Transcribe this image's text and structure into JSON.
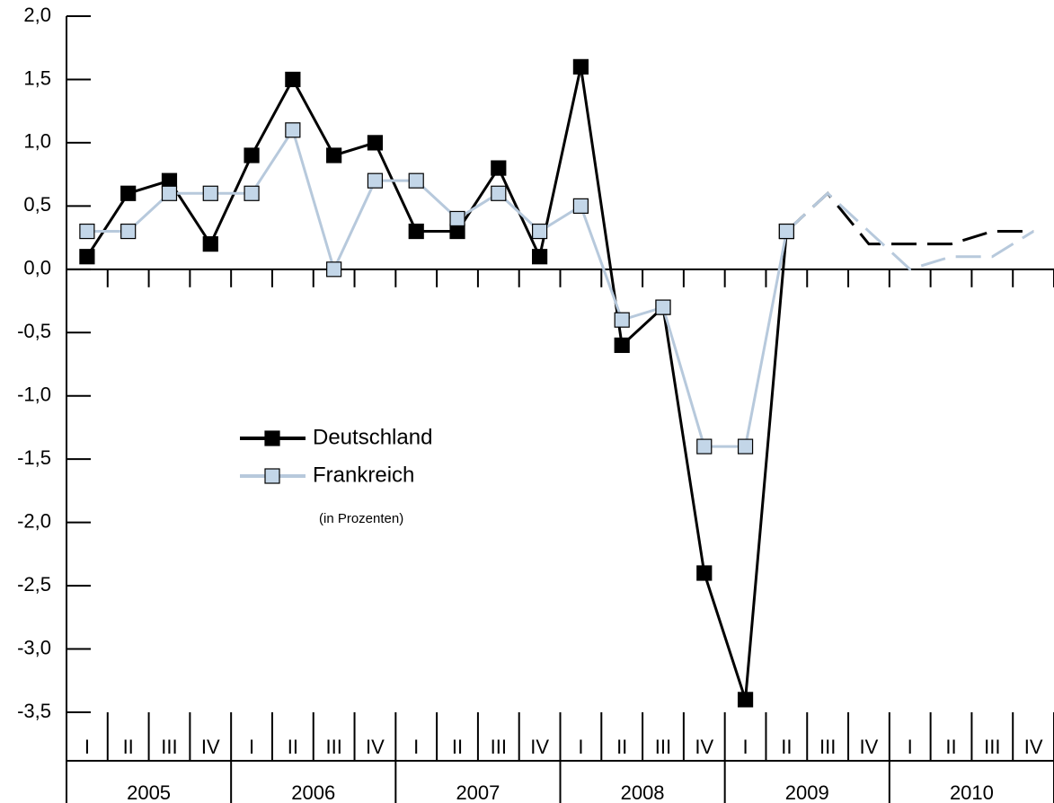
{
  "chart_data": {
    "type": "line",
    "annotation": "(in Prozenten)",
    "categories": [
      "I",
      "II",
      "III",
      "IV",
      "I",
      "II",
      "III",
      "IV",
      "I",
      "II",
      "III",
      "IV",
      "I",
      "II",
      "III",
      "IV",
      "I",
      "II",
      "III",
      "IV",
      "I",
      "II",
      "III",
      "IV"
    ],
    "years": [
      "2005",
      "2006",
      "2007",
      "2008",
      "2009",
      "2010"
    ],
    "series": [
      {
        "name": "Deutschland",
        "color": "#000000",
        "marker_fill": "#000000",
        "values": [
          0.1,
          0.6,
          0.7,
          0.2,
          0.9,
          1.5,
          0.9,
          1.0,
          0.3,
          0.3,
          0.8,
          0.1,
          1.6,
          -0.6,
          -0.3,
          -2.4,
          -3.4,
          0.3,
          0.6,
          0.2,
          0.2,
          0.2,
          0.3,
          0.3
        ]
      },
      {
        "name": "Frankreich",
        "color": "#b7c9dc",
        "marker_fill": "#c3d6e8",
        "values": [
          0.3,
          0.3,
          0.6,
          0.6,
          0.6,
          1.1,
          0.0,
          0.7,
          0.7,
          0.4,
          0.6,
          0.3,
          0.5,
          -0.4,
          -0.3,
          -1.4,
          -1.4,
          0.3,
          0.6,
          0.3,
          0.0,
          0.1,
          0.1,
          0.3
        ]
      }
    ],
    "dash_from": 17,
    "ylim": [
      -3.5,
      2.0
    ],
    "yticks": [
      {
        "value": 2.0,
        "label": "2,0"
      },
      {
        "value": 1.5,
        "label": "1,5"
      },
      {
        "value": 1.0,
        "label": "1,0"
      },
      {
        "value": 0.5,
        "label": "0,5"
      },
      {
        "value": 0.0,
        "label": "0,0"
      },
      {
        "value": -0.5,
        "label": "-0,5"
      },
      {
        "value": -1.0,
        "label": "-1,0"
      },
      {
        "value": -1.5,
        "label": "-1,5"
      },
      {
        "value": -2.0,
        "label": "-2,0"
      },
      {
        "value": -2.5,
        "label": "-2,5"
      },
      {
        "value": -3.0,
        "label": "-3,0"
      },
      {
        "value": -3.5,
        "label": "-3,5"
      }
    ]
  }
}
